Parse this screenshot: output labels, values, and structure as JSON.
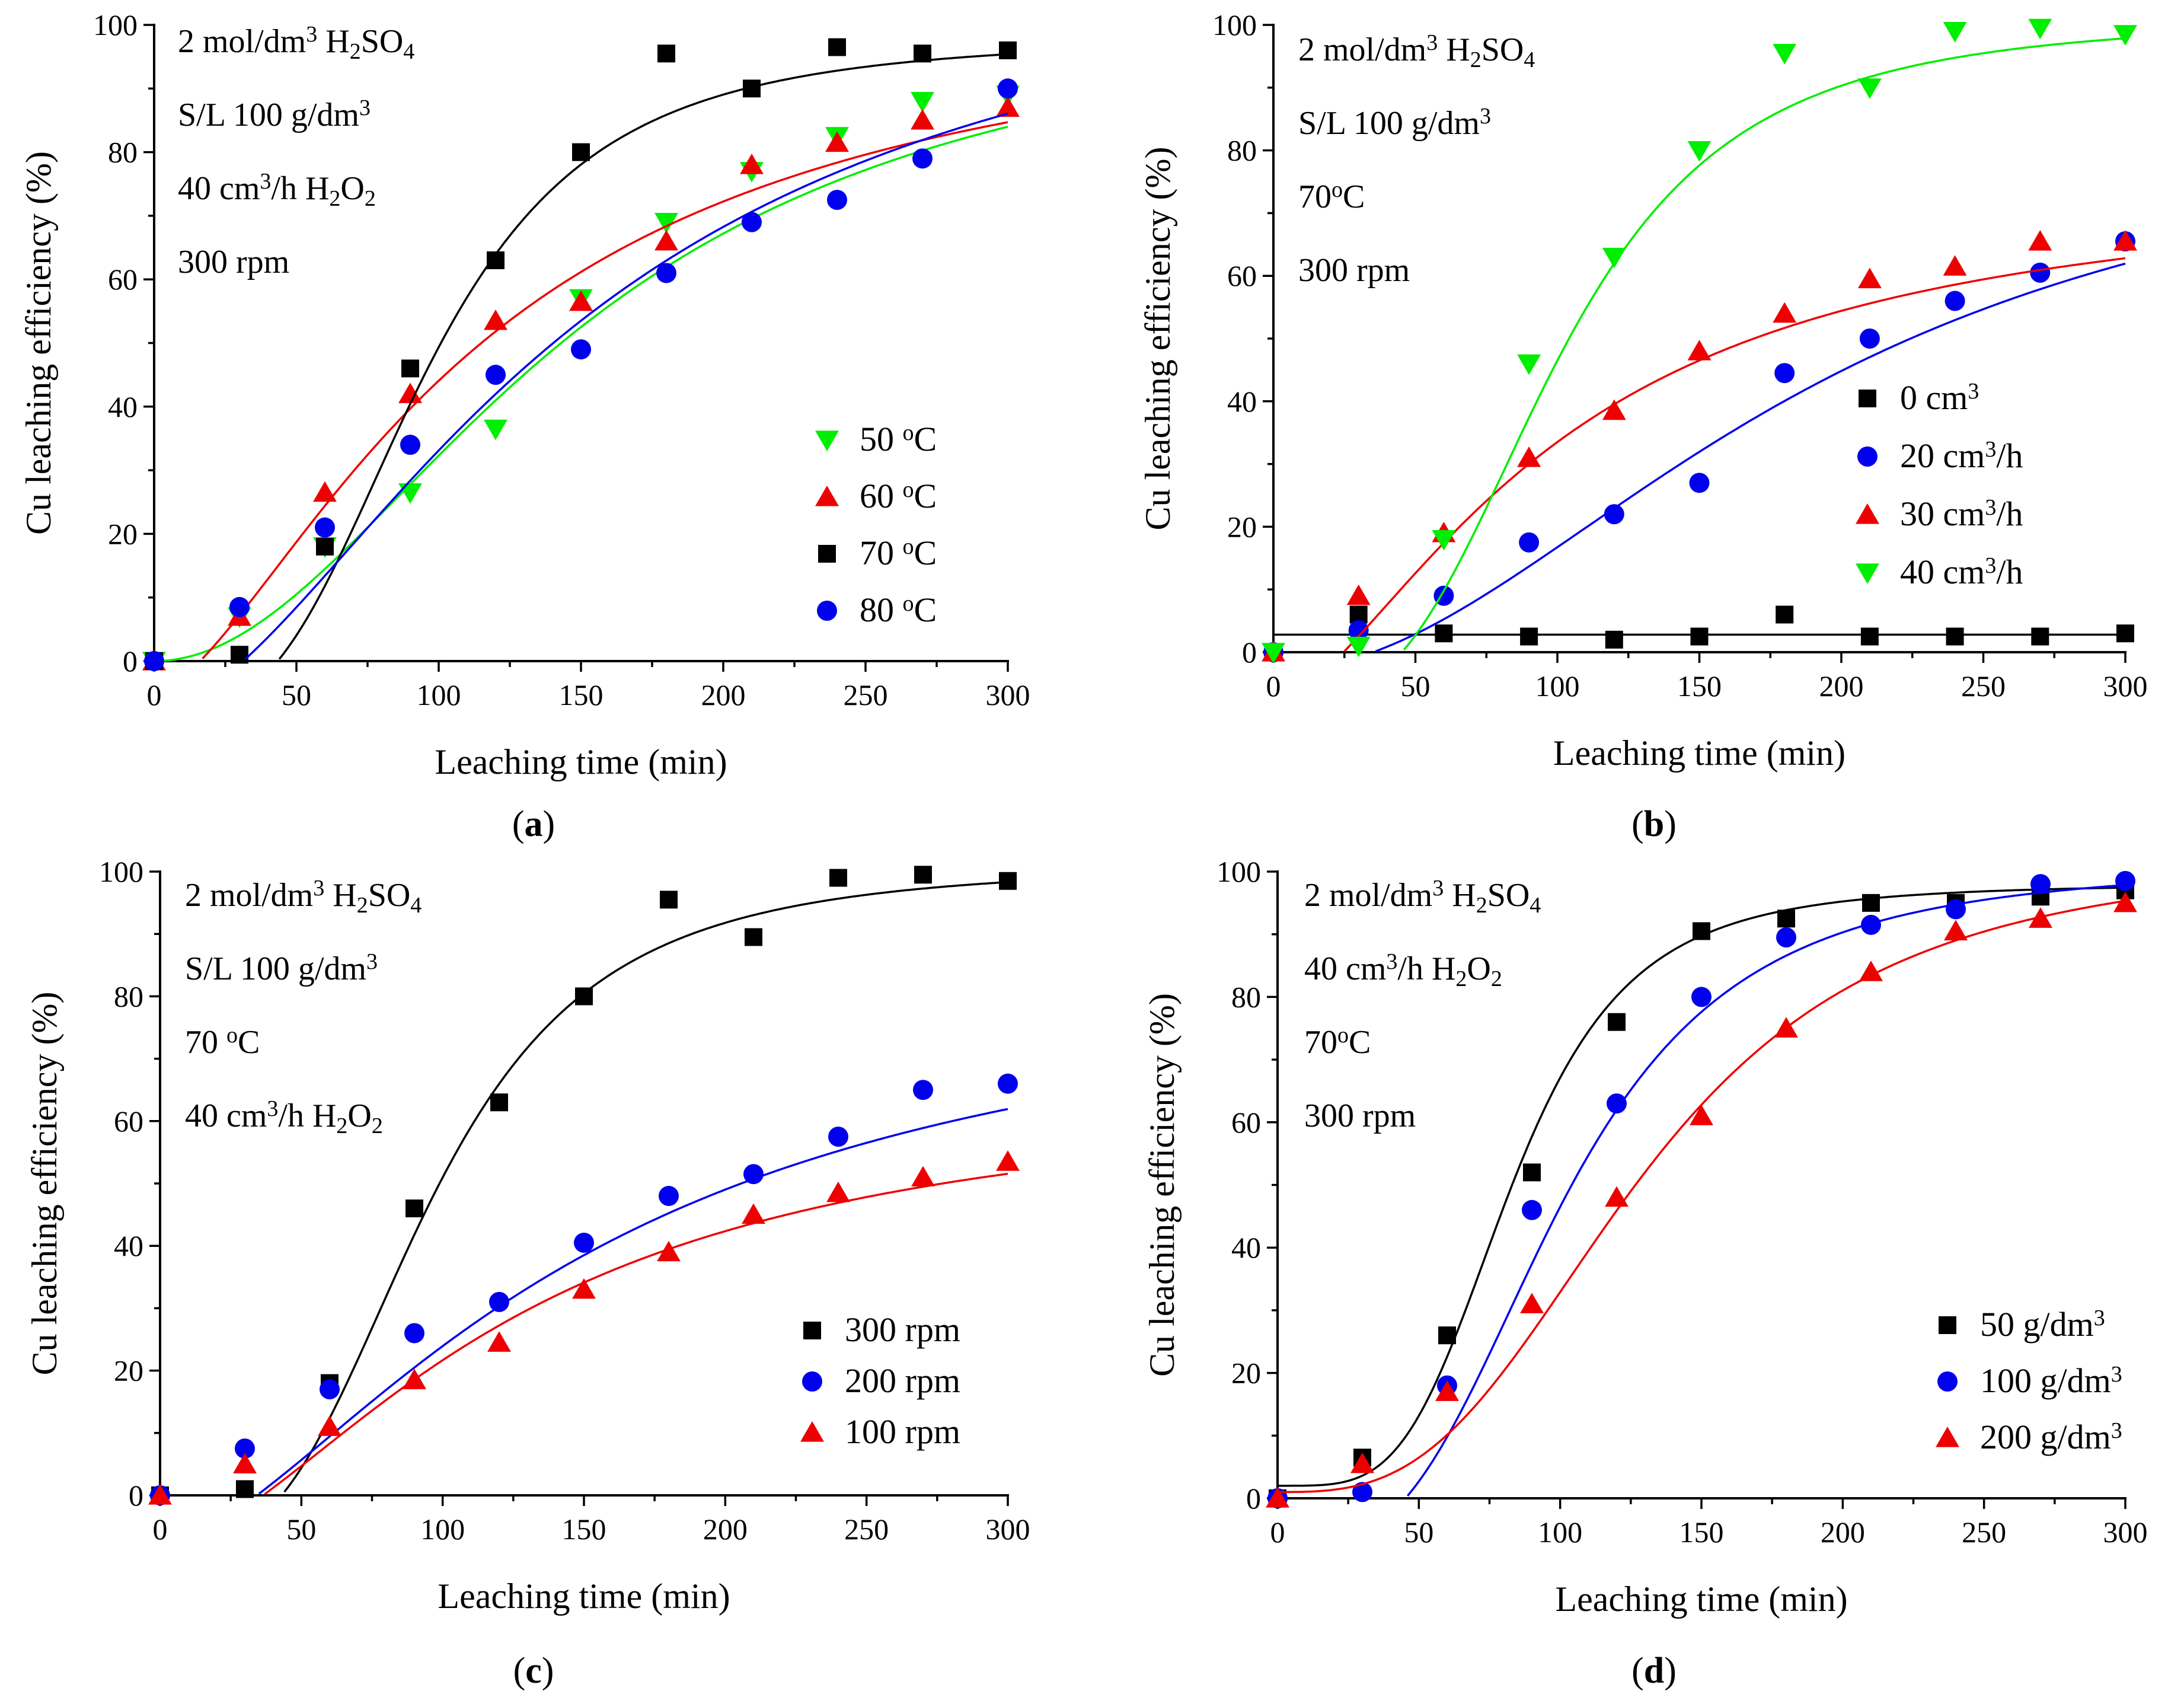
{
  "chart_data": [
    {
      "type": "scatter",
      "panel": "a",
      "panel_label_open": "(",
      "panel_label_letter": "a",
      "panel_label_close": ")",
      "xlabel": "Leaching time (min)",
      "ylabel": "Cu leaching efficiency (%)",
      "xlim": [
        0,
        300
      ],
      "ylim": [
        0,
        100
      ],
      "xticks": [
        0,
        50,
        100,
        150,
        200,
        250,
        300
      ],
      "yticks": [
        0,
        20,
        40,
        60,
        80,
        100
      ],
      "annotations": [
        [
          {
            "t": "2 mol/dm"
          },
          {
            "t": "3",
            "s": "sup"
          },
          {
            "t": " H"
          },
          {
            "t": "2",
            "s": "sub"
          },
          {
            "t": "SO"
          },
          {
            "t": "4",
            "s": "sub"
          }
        ],
        [
          {
            "t": "S/L 100 g/dm"
          },
          {
            "t": "3",
            "s": "sup"
          }
        ],
        [
          {
            "t": "40 cm"
          },
          {
            "t": "3",
            "s": "sup"
          },
          {
            "t": "/h H"
          },
          {
            "t": "2",
            "s": "sub"
          },
          {
            "t": "O"
          },
          {
            "t": "2",
            "s": "sub"
          }
        ],
        [
          {
            "t": "300 rpm"
          }
        ]
      ],
      "legend_position": "bottom-right",
      "series": [
        {
          "name": "50 °C",
          "label": [
            {
              "t": "50 "
            },
            {
              "t": "o",
              "s": "sup"
            },
            {
              "t": "C"
            }
          ],
          "color": "#00ee00",
          "marker": "triangle-down",
          "x": [
            0,
            30,
            60,
            90,
            120,
            150,
            180,
            210,
            240,
            270,
            300
          ],
          "y": [
            0,
            7,
            18,
            26.5,
            36.5,
            57,
            69,
            77,
            82.5,
            88,
            89
          ],
          "fit": {
            "model": "logistic",
            "A1": 0,
            "A2": 105,
            "x0": 150,
            "p": 2.0
          }
        },
        {
          "name": "60 °C",
          "label": [
            {
              "t": "60 "
            },
            {
              "t": "o",
              "s": "sup"
            },
            {
              "t": "C"
            }
          ],
          "color": "#ee0000",
          "marker": "triangle-up",
          "x": [
            0,
            30,
            60,
            90,
            120,
            150,
            180,
            210,
            240,
            270,
            300
          ],
          "y": [
            0,
            7,
            26.5,
            42,
            53.5,
            56.5,
            66,
            78,
            81.5,
            85,
            87
          ],
          "fit": {
            "model": "logistic",
            "A1": -5,
            "A2": 105,
            "x0": 115,
            "p": 1.55
          }
        },
        {
          "name": "70 °C",
          "label": [
            {
              "t": "70 "
            },
            {
              "t": "o",
              "s": "sup"
            },
            {
              "t": "C"
            }
          ],
          "color": "#000000",
          "marker": "square",
          "x": [
            0,
            30,
            60,
            90,
            120,
            150,
            180,
            210,
            240,
            270,
            300
          ],
          "y": [
            0,
            1,
            18,
            46,
            63,
            80,
            95.5,
            90,
            96.5,
            95.5,
            96
          ],
          "fit": {
            "model": "logistic",
            "A1": -8,
            "A2": 98,
            "x0": 95,
            "p": 3.2
          }
        },
        {
          "name": "80 °C",
          "label": [
            {
              "t": "80 "
            },
            {
              "t": "o",
              "s": "sup"
            },
            {
              "t": "C"
            }
          ],
          "color": "#0000ee",
          "marker": "circle",
          "x": [
            0,
            30,
            60,
            90,
            120,
            150,
            180,
            210,
            240,
            270,
            300
          ],
          "y": [
            0,
            8.5,
            21,
            34,
            45,
            49,
            61,
            69,
            72.5,
            79,
            90
          ],
          "fit": {
            "model": "logistic",
            "A1": -8,
            "A2": 115,
            "x0": 150,
            "p": 1.7
          }
        }
      ]
    },
    {
      "type": "scatter",
      "panel": "b",
      "panel_label_open": "(",
      "panel_label_letter": "b",
      "panel_label_close": ")",
      "xlabel": "Leaching time (min)",
      "ylabel": "Cu leaching efficiency (%)",
      "xlim": [
        0,
        300
      ],
      "ylim": [
        0,
        100
      ],
      "xticks": [
        0,
        50,
        100,
        150,
        200,
        250,
        300
      ],
      "yticks": [
        0,
        20,
        40,
        60,
        80,
        100
      ],
      "annotations": [
        [
          {
            "t": "2 mol/dm"
          },
          {
            "t": "3",
            "s": "sup"
          },
          {
            "t": " H"
          },
          {
            "t": "2",
            "s": "sub"
          },
          {
            "t": "SO"
          },
          {
            "t": "4",
            "s": "sub"
          }
        ],
        [
          {
            "t": "S/L 100 g/dm"
          },
          {
            "t": "3",
            "s": "sup"
          }
        ],
        [
          {
            "t": "70"
          },
          {
            "t": "o",
            "s": "sup"
          },
          {
            "t": "C"
          }
        ],
        [
          {
            "t": "300 rpm"
          }
        ]
      ],
      "legend_position": "bottom-right",
      "series": [
        {
          "name": "0 cm3",
          "label": [
            {
              "t": "0 cm"
            },
            {
              "t": "3",
              "s": "sup"
            }
          ],
          "color": "#000000",
          "marker": "square",
          "x": [
            0,
            30,
            60,
            90,
            120,
            150,
            180,
            210,
            240,
            270,
            300
          ],
          "y": [
            0,
            6,
            3,
            2.5,
            2,
            2.5,
            6,
            2.5,
            2.5,
            2.5,
            3
          ],
          "fit": {
            "model": "const",
            "c": 2.8
          }
        },
        {
          "name": "20 cm3/h",
          "label": [
            {
              "t": "20 cm"
            },
            {
              "t": "3",
              "s": "sup"
            },
            {
              "t": "/h"
            }
          ],
          "color": "#0000ee",
          "marker": "circle",
          "x": [
            0,
            30,
            60,
            90,
            120,
            150,
            180,
            210,
            240,
            270,
            300
          ],
          "y": [
            0,
            3.5,
            9,
            17.5,
            22,
            27,
            44.5,
            50,
            56,
            60.5,
            65.5
          ],
          "fit": {
            "model": "logistic",
            "A1": -3,
            "A2": 88,
            "x0": 190,
            "p": 2.0
          }
        },
        {
          "name": "30 cm3/h",
          "label": [
            {
              "t": "30 cm"
            },
            {
              "t": "3",
              "s": "sup"
            },
            {
              "t": "/h"
            }
          ],
          "color": "#ee0000",
          "marker": "triangle-up",
          "x": [
            0,
            30,
            60,
            90,
            120,
            150,
            180,
            210,
            240,
            270,
            300
          ],
          "y": [
            0,
            9,
            19,
            31,
            38.5,
            48,
            54,
            59.5,
            61.5,
            65.5,
            65.5
          ],
          "fit": {
            "model": "logistic",
            "A1": -8,
            "A2": 75,
            "x0": 100,
            "p": 1.6
          }
        },
        {
          "name": "40 cm3/h",
          "label": [
            {
              "t": "40 cm"
            },
            {
              "t": "3",
              "s": "sup"
            },
            {
              "t": "/h"
            }
          ],
          "color": "#00ee00",
          "marker": "triangle-down",
          "x": [
            0,
            30,
            60,
            90,
            120,
            150,
            180,
            210,
            240,
            270,
            300
          ],
          "y": [
            0,
            1,
            18,
            46,
            63,
            80,
            95.5,
            90,
            99,
            99.5,
            98.5
          ],
          "fit": {
            "model": "logistic",
            "A1": -8,
            "A2": 101,
            "x0": 100,
            "p": 3.2
          }
        }
      ]
    },
    {
      "type": "scatter",
      "panel": "c",
      "panel_label_open": "(",
      "panel_label_letter": "c",
      "panel_label_close": ")",
      "xlabel": "Leaching time (min)",
      "ylabel": "Cu leaching efficiency (%)",
      "xlim": [
        0,
        300
      ],
      "ylim": [
        0,
        100
      ],
      "xticks": [
        0,
        50,
        100,
        150,
        200,
        250,
        300
      ],
      "yticks": [
        0,
        20,
        40,
        60,
        80,
        100
      ],
      "annotations": [
        [
          {
            "t": "2 mol/dm"
          },
          {
            "t": "3",
            "s": "sup"
          },
          {
            "t": " H"
          },
          {
            "t": "2",
            "s": "sub"
          },
          {
            "t": "SO"
          },
          {
            "t": "4",
            "s": "sub"
          }
        ],
        [
          {
            "t": "S/L 100 g/dm"
          },
          {
            "t": "3",
            "s": "sup"
          }
        ],
        [
          {
            "t": "70 "
          },
          {
            "t": "o",
            "s": "sup"
          },
          {
            "t": "C"
          }
        ],
        [
          {
            "t": "40 cm"
          },
          {
            "t": "3",
            "s": "sup"
          },
          {
            "t": "/h H"
          },
          {
            "t": "2",
            "s": "sub"
          },
          {
            "t": "O"
          },
          {
            "t": "2",
            "s": "sub"
          }
        ]
      ],
      "legend_position": "bottom-right",
      "series": [
        {
          "name": "300 rpm",
          "label": [
            {
              "t": "300 rpm"
            }
          ],
          "color": "#000000",
          "marker": "square",
          "x": [
            0,
            30,
            60,
            90,
            120,
            150,
            180,
            210,
            240,
            270,
            300
          ],
          "y": [
            0,
            1,
            18,
            46,
            63,
            80,
            95.5,
            89.5,
            99,
            99.5,
            98.5
          ],
          "fit": {
            "model": "logistic",
            "A1": -8,
            "A2": 101,
            "x0": 95,
            "p": 3.2
          }
        },
        {
          "name": "200 rpm",
          "label": [
            {
              "t": "200 rpm"
            }
          ],
          "color": "#0000ee",
          "marker": "circle",
          "x": [
            0,
            30,
            60,
            90,
            120,
            150,
            180,
            210,
            240,
            270,
            300
          ],
          "y": [
            0,
            7.5,
            17,
            26,
            31,
            40.5,
            48,
            51.5,
            57.5,
            65,
            66
          ],
          "fit": {
            "model": "logistic",
            "A1": -8,
            "A2": 85,
            "x0": 150,
            "p": 1.6
          }
        },
        {
          "name": "100 rpm",
          "label": [
            {
              "t": "100 rpm"
            }
          ],
          "color": "#ee0000",
          "marker": "triangle-up",
          "x": [
            0,
            30,
            60,
            90,
            120,
            150,
            180,
            210,
            240,
            270,
            300
          ],
          "y": [
            0,
            5,
            11,
            18.5,
            24.5,
            33,
            39,
            45,
            48.5,
            51,
            53.5
          ],
          "fit": {
            "model": "logistic",
            "A1": -8,
            "A2": 65,
            "x0": 125,
            "p": 1.7
          }
        }
      ]
    },
    {
      "type": "scatter",
      "panel": "d",
      "panel_label_open": "(",
      "panel_label_letter": "d",
      "panel_label_close": ")",
      "xlabel": "Leaching time (min)",
      "ylabel": "Cu leaching efficiency (%)",
      "xlim": [
        0,
        300
      ],
      "ylim": [
        0,
        100
      ],
      "xticks": [
        0,
        50,
        100,
        150,
        200,
        250,
        300
      ],
      "yticks": [
        0,
        20,
        40,
        60,
        80,
        100
      ],
      "annotations": [
        [
          {
            "t": "2 mol/dm"
          },
          {
            "t": "3",
            "s": "sup"
          },
          {
            "t": " H"
          },
          {
            "t": "2",
            "s": "sub"
          },
          {
            "t": "SO"
          },
          {
            "t": "4",
            "s": "sub"
          }
        ],
        [
          {
            "t": "40 cm"
          },
          {
            "t": "3",
            "s": "sup"
          },
          {
            "t": "/h H"
          },
          {
            "t": "2",
            "s": "sub"
          },
          {
            "t": "O"
          },
          {
            "t": "2",
            "s": "sub"
          }
        ],
        [
          {
            "t": "70"
          },
          {
            "t": "o",
            "s": "sup"
          },
          {
            "t": "C"
          }
        ],
        [
          {
            "t": "300 rpm"
          }
        ]
      ],
      "legend_position": "bottom-right",
      "series": [
        {
          "name": "50 g/dm3",
          "label": [
            {
              "t": "50 g/dm"
            },
            {
              "t": "3",
              "s": "sup"
            }
          ],
          "color": "#000000",
          "marker": "square",
          "x": [
            0,
            30,
            60,
            90,
            120,
            150,
            180,
            210,
            240,
            270,
            300
          ],
          "y": [
            0,
            6.5,
            26,
            52,
            76,
            90.5,
            92.5,
            95,
            95,
            96,
            97
          ],
          "fit": {
            "model": "logistic",
            "A1": 2,
            "A2": 98,
            "x0": 83,
            "p": 4.0
          }
        },
        {
          "name": "100 g/dm3",
          "label": [
            {
              "t": "100 g/dm"
            },
            {
              "t": "3",
              "s": "sup"
            }
          ],
          "color": "#0000ee",
          "marker": "circle",
          "x": [
            0,
            30,
            60,
            90,
            120,
            150,
            180,
            210,
            240,
            270,
            300
          ],
          "y": [
            0,
            1,
            18,
            46,
            63,
            80,
            89.5,
            91.5,
            94,
            98,
            98.5
          ],
          "fit": {
            "model": "logistic",
            "A1": -8,
            "A2": 101,
            "x0": 100,
            "p": 3.2
          }
        },
        {
          "name": "200 g/dm3",
          "label": [
            {
              "t": "200 g/dm"
            },
            {
              "t": "3",
              "s": "sup"
            }
          ],
          "color": "#ee0000",
          "marker": "triangle-up",
          "x": [
            0,
            30,
            60,
            90,
            120,
            150,
            180,
            210,
            240,
            270,
            300
          ],
          "y": [
            0,
            5.5,
            17,
            31,
            48,
            61,
            75,
            84,
            90.5,
            92.5,
            95
          ],
          "fit": {
            "model": "logistic",
            "A1": 1,
            "A2": 103,
            "x0": 130,
            "p": 3.0
          }
        }
      ]
    }
  ]
}
